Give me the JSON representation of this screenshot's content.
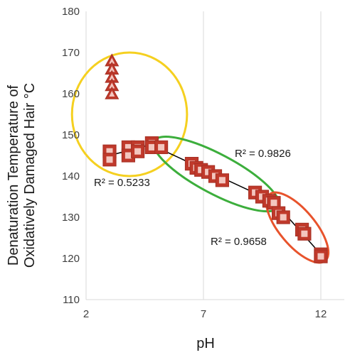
{
  "chart_data": {
    "type": "scatter",
    "title": "",
    "xlabel": "pH",
    "ylabel_lines": [
      "Denaturation Temperature of",
      "Oxidatively Damaged Hair °C"
    ],
    "xlim": [
      2,
      13
    ],
    "ylim": [
      110,
      180
    ],
    "xticks": [
      2,
      7,
      12
    ],
    "yticks": [
      110,
      120,
      130,
      140,
      150,
      160,
      170,
      180
    ],
    "grid": "vertical",
    "colors": {
      "marker_fill": "#c0392b",
      "marker_edge": "#a93226",
      "trendline": "#000000",
      "grid": "#d9d9d9",
      "ellipse_yellow": "#f5d020",
      "ellipse_green": "#3cae3c",
      "ellipse_red": "#e8532c"
    },
    "series": [
      {
        "marker": "triangle",
        "points": [
          [
            3.1,
            168
          ],
          [
            3.1,
            166
          ],
          [
            3.1,
            164
          ],
          [
            3.1,
            162
          ],
          [
            3.1,
            160
          ]
        ]
      },
      {
        "marker": "square",
        "points": [
          [
            3.0,
            146
          ],
          [
            3.0,
            144
          ],
          [
            3.8,
            147
          ],
          [
            3.8,
            145
          ],
          [
            4.2,
            147
          ],
          [
            4.2,
            146
          ],
          [
            4.8,
            148
          ],
          [
            4.8,
            147
          ],
          [
            5.2,
            147
          ],
          [
            6.5,
            143
          ],
          [
            6.7,
            142
          ],
          [
            6.9,
            141.5
          ],
          [
            7.2,
            141
          ],
          [
            7.5,
            140
          ],
          [
            7.8,
            139
          ],
          [
            9.2,
            136
          ],
          [
            9.5,
            135
          ],
          [
            9.8,
            134
          ],
          [
            10.0,
            133.5
          ],
          [
            10.2,
            131
          ],
          [
            10.4,
            130
          ],
          [
            11.2,
            127
          ],
          [
            11.3,
            126
          ],
          [
            12.0,
            121
          ],
          [
            12.0,
            120.5
          ]
        ]
      }
    ],
    "trendlines": [
      {
        "points": [
          [
            3.0,
            145
          ],
          [
            5.0,
            148
          ]
        ],
        "r2_label": "R² = 0.5233"
      },
      {
        "points": [
          [
            5.0,
            147
          ],
          [
            9.9,
            134
          ]
        ],
        "r2_label": "R² = 0.9826"
      },
      {
        "points": [
          [
            9.9,
            134.5
          ],
          [
            12.0,
            121
          ]
        ],
        "r2_label": "R² = 0.9658"
      }
    ],
    "annotations": [
      {
        "type": "ellipse",
        "color_key": "ellipse_yellow",
        "cx": 3.85,
        "cy": 155,
        "rx": 2.45,
        "ry": 15
      },
      {
        "type": "ellipse",
        "color_key": "ellipse_green",
        "cx": 7.55,
        "cy": 140.5,
        "rx": 3.0,
        "ry": 4.8,
        "rotate_deg": 28
      },
      {
        "type": "ellipse",
        "color_key": "ellipse_red",
        "cx": 11.0,
        "cy": 127.5,
        "rx": 1.85,
        "ry": 4.3,
        "rotate_deg": 50
      }
    ]
  }
}
